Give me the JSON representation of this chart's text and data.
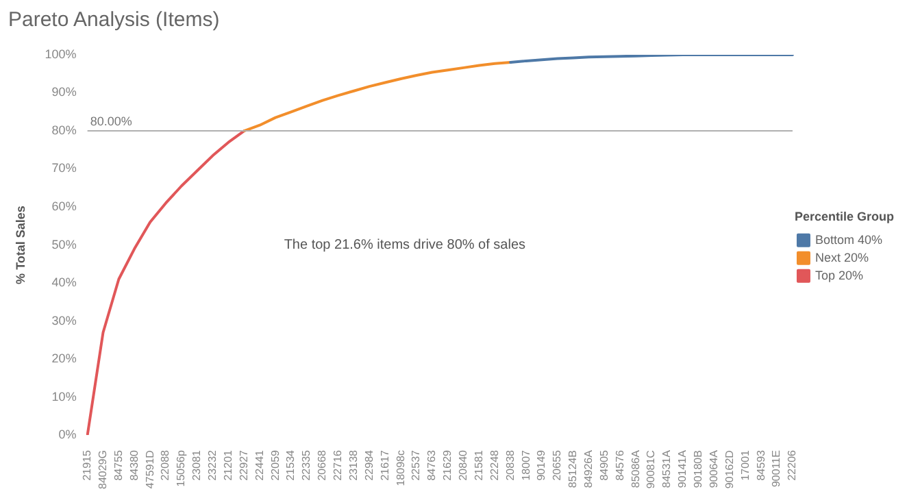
{
  "chart_data": {
    "type": "line",
    "title": "Pareto Analysis (Items)",
    "ylabel": "% Total Sales",
    "legend_title": "Percentile Group",
    "legend": "right",
    "grid": false,
    "marker": "none",
    "line_style": "solid",
    "categories": [
      "21915",
      "84029G",
      "84755",
      "84380",
      "47591D",
      "22088",
      "15056p",
      "23081",
      "23232",
      "21201",
      "22927",
      "22441",
      "22059",
      "21534",
      "22335",
      "20668",
      "22716",
      "23138",
      "22984",
      "21617",
      "18098c",
      "22537",
      "84763",
      "21629",
      "20840",
      "21581",
      "22248",
      "20838",
      "18007",
      "90149",
      "20655",
      "85124B",
      "84926A",
      "84905",
      "84576",
      "85086A",
      "90081C",
      "84531A",
      "90141A",
      "90180B",
      "90064A",
      "90162D",
      "17001",
      "84593",
      "90011E",
      "22206"
    ],
    "ylim": [
      0,
      100
    ],
    "yticks": [
      {
        "value": 0,
        "label": "0%"
      },
      {
        "value": 10,
        "label": "10%"
      },
      {
        "value": 20,
        "label": "20%"
      },
      {
        "value": 30,
        "label": "30%"
      },
      {
        "value": 40,
        "label": "40%"
      },
      {
        "value": 50,
        "label": "50%"
      },
      {
        "value": 60,
        "label": "60%"
      },
      {
        "value": 70,
        "label": "70%"
      },
      {
        "value": 80,
        "label": "80%"
      },
      {
        "value": 90,
        "label": "90%"
      },
      {
        "value": 100,
        "label": "100%"
      }
    ],
    "series": [
      {
        "name": "Bottom 40%",
        "color": "#4e79a7",
        "values": [
          null,
          null,
          null,
          null,
          null,
          null,
          null,
          null,
          null,
          null,
          null,
          null,
          null,
          null,
          null,
          null,
          null,
          null,
          null,
          null,
          null,
          null,
          null,
          null,
          null,
          null,
          null,
          98,
          98.4,
          98.7,
          99,
          99.2,
          99.4,
          99.5,
          99.6,
          99.7,
          99.8,
          99.9,
          100,
          100,
          100,
          100,
          100,
          100,
          100,
          100
        ]
      },
      {
        "name": "Next 20%",
        "color": "#f28e2b",
        "values": [
          null,
          null,
          null,
          null,
          null,
          null,
          null,
          null,
          null,
          null,
          80,
          81.5,
          83.5,
          85,
          86.5,
          88,
          89.3,
          90.5,
          91.7,
          92.7,
          93.7,
          94.6,
          95.4,
          96,
          96.6,
          97.2,
          97.7,
          98,
          null,
          null,
          null,
          null,
          null,
          null,
          null,
          null,
          null,
          null,
          null,
          null,
          null,
          null,
          null,
          null,
          null,
          null
        ]
      },
      {
        "name": "Top 20%",
        "color": "#e15759",
        "values": [
          0,
          27,
          41,
          49,
          56,
          61,
          65.5,
          69.5,
          73.5,
          77,
          80,
          null,
          null,
          null,
          null,
          null,
          null,
          null,
          null,
          null,
          null,
          null,
          null,
          null,
          null,
          null,
          null,
          null,
          null,
          null,
          null,
          null,
          null,
          null,
          null,
          null,
          null,
          null,
          null,
          null,
          null,
          null,
          null,
          null,
          null,
          null
        ]
      }
    ],
    "ref_lines": [
      {
        "axis": "y",
        "value": 80,
        "label": "80.00%",
        "color": "#b0b0b0"
      }
    ],
    "annotations": [
      "The top 21.6% items drive 80% of sales"
    ]
  }
}
